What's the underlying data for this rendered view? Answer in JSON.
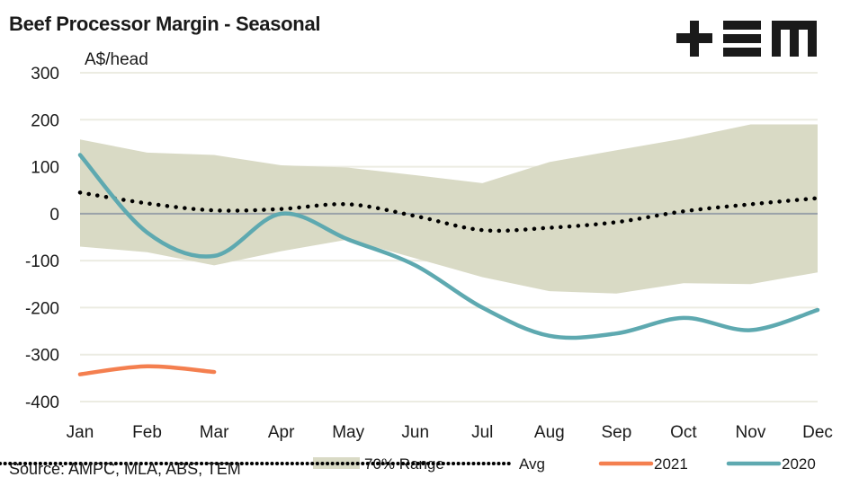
{
  "header": {
    "title": "Beef Processor Margin - Seasonal",
    "unit": "A$/head",
    "logo": "+EM",
    "source": "Source: AMPC, MLA, ABS, TEM"
  },
  "chart_data": {
    "type": "line",
    "title": "Beef Processor Margin - Seasonal",
    "xlabel": "",
    "ylabel": "A$/head",
    "ylim": [
      -400,
      300
    ],
    "yticks": [
      300,
      200,
      100,
      0,
      -100,
      -200,
      -300,
      -400
    ],
    "ytick_labels": [
      "300",
      "200",
      "100",
      "0",
      "-100",
      "-200",
      "-300",
      "-400"
    ],
    "categories": [
      "Jan",
      "Feb",
      "Mar",
      "Apr",
      "May",
      "Jun",
      "Jul",
      "Aug",
      "Sep",
      "Oct",
      "Nov",
      "Dec"
    ],
    "grid": true,
    "legend_position": "bottom",
    "series": [
      {
        "name": "70% Range",
        "kind": "band",
        "color": "#d9dac5",
        "upper": [
          158,
          130,
          125,
          103,
          98,
          82,
          65,
          110,
          135,
          160,
          190,
          190
        ],
        "lower": [
          -70,
          -82,
          -110,
          -80,
          -55,
          -95,
          -135,
          -165,
          -170,
          -148,
          -150,
          -125
        ]
      },
      {
        "name": "Avg",
        "kind": "dotted",
        "color": "#000000",
        "values": [
          45,
          22,
          7,
          10,
          20,
          -5,
          -35,
          -30,
          -18,
          5,
          20,
          33
        ]
      },
      {
        "name": "2021",
        "kind": "line",
        "color": "#f47f4f",
        "values": [
          -342,
          -325,
          -337,
          null,
          null,
          null,
          null,
          null,
          null,
          null,
          null,
          null
        ]
      },
      {
        "name": "2020",
        "kind": "line",
        "color": "#5ea9b0",
        "values": [
          125,
          -40,
          -90,
          0,
          -55,
          -110,
          -200,
          -260,
          -255,
          -222,
          -248,
          -205
        ]
      }
    ]
  },
  "legend": [
    {
      "label": "70% Range"
    },
    {
      "label": "Avg"
    },
    {
      "label": "2021"
    },
    {
      "label": "2020"
    }
  ]
}
